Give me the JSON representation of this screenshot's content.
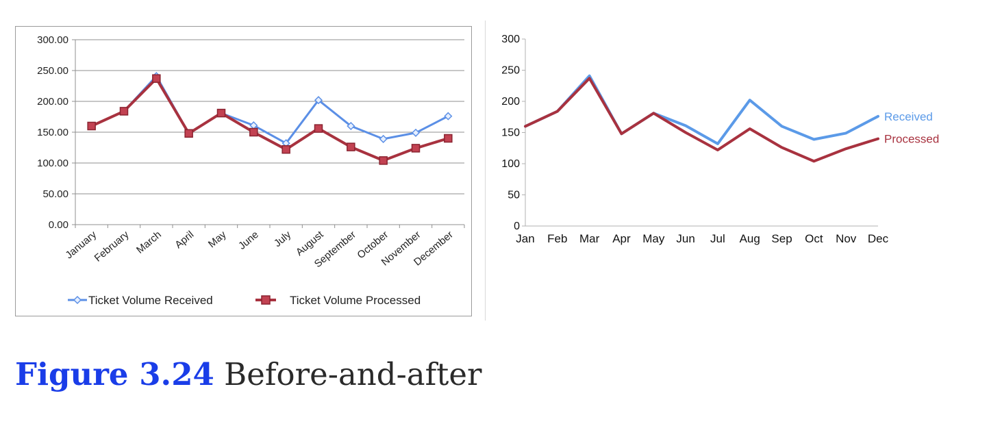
{
  "chart_data": [
    {
      "type": "line",
      "categories": [
        "January",
        "February",
        "March",
        "April",
        "May",
        "June",
        "July",
        "August",
        "September",
        "October",
        "November",
        "December"
      ],
      "series": [
        {
          "name": "Ticket Volume Received",
          "values": [
            160,
            184,
            241,
            148,
            181,
            161,
            132,
            202,
            160,
            139,
            149,
            176
          ],
          "color": "#5b8fe6",
          "marker": "diamond"
        },
        {
          "name": "Ticket Volume Processed",
          "values": [
            160,
            184,
            237,
            148,
            181,
            150,
            122,
            156,
            126,
            104,
            124,
            140
          ],
          "color": "#a8323f",
          "marker": "square"
        }
      ],
      "ylim": [
        0,
        300
      ],
      "yticks": [
        "0.00",
        "50.00",
        "100.00",
        "150.00",
        "200.00",
        "250.00",
        "300.00"
      ],
      "grid": true,
      "legend": "bottom"
    },
    {
      "type": "line",
      "categories": [
        "Jan",
        "Feb",
        "Mar",
        "Apr",
        "May",
        "Jun",
        "Jul",
        "Aug",
        "Sep",
        "Oct",
        "Nov",
        "Dec"
      ],
      "series": [
        {
          "name": "Received",
          "values": [
            160,
            184,
            241,
            148,
            181,
            161,
            132,
            202,
            160,
            139,
            149,
            176
          ],
          "color": "#5b9ae8"
        },
        {
          "name": "Processed",
          "values": [
            160,
            184,
            237,
            148,
            181,
            150,
            122,
            156,
            126,
            104,
            124,
            140
          ],
          "color": "#a8323f"
        }
      ],
      "ylim": [
        0,
        300
      ],
      "yticks": [
        "0",
        "50",
        "100",
        "150",
        "200",
        "250",
        "300"
      ],
      "grid": false,
      "legend": "direct labels at right end"
    }
  ],
  "caption": {
    "label": "Figure 3.24",
    "text": "Before-and-after"
  }
}
